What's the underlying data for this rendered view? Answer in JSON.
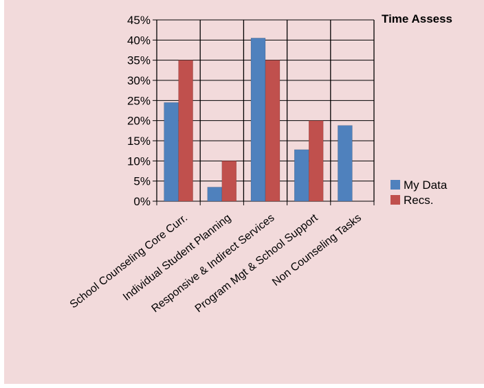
{
  "chart_data": {
    "type": "bar",
    "title": "Time Assess",
    "categories": [
      "School Counseling Core Curr.",
      "Individual Student Planning",
      "Responsive & Indirect Services",
      "Program Mgt & School Support",
      "Non Counseling Tasks"
    ],
    "series": [
      {
        "name": "My Data",
        "color": "#4f81bd",
        "values": [
          24.5,
          3.5,
          40.5,
          12.8,
          18.8
        ]
      },
      {
        "name": "Recs.",
        "color": "#c0504d",
        "values": [
          35,
          10,
          35,
          20,
          0
        ]
      }
    ],
    "y_ticks": [
      "0%",
      "5%",
      "10%",
      "15%",
      "20%",
      "25%",
      "30%",
      "35%",
      "40%",
      "45%"
    ],
    "ylim": [
      0,
      45
    ],
    "xlabel": "",
    "ylabel": "",
    "grid": "vertical category separators",
    "legend_position": "right"
  }
}
